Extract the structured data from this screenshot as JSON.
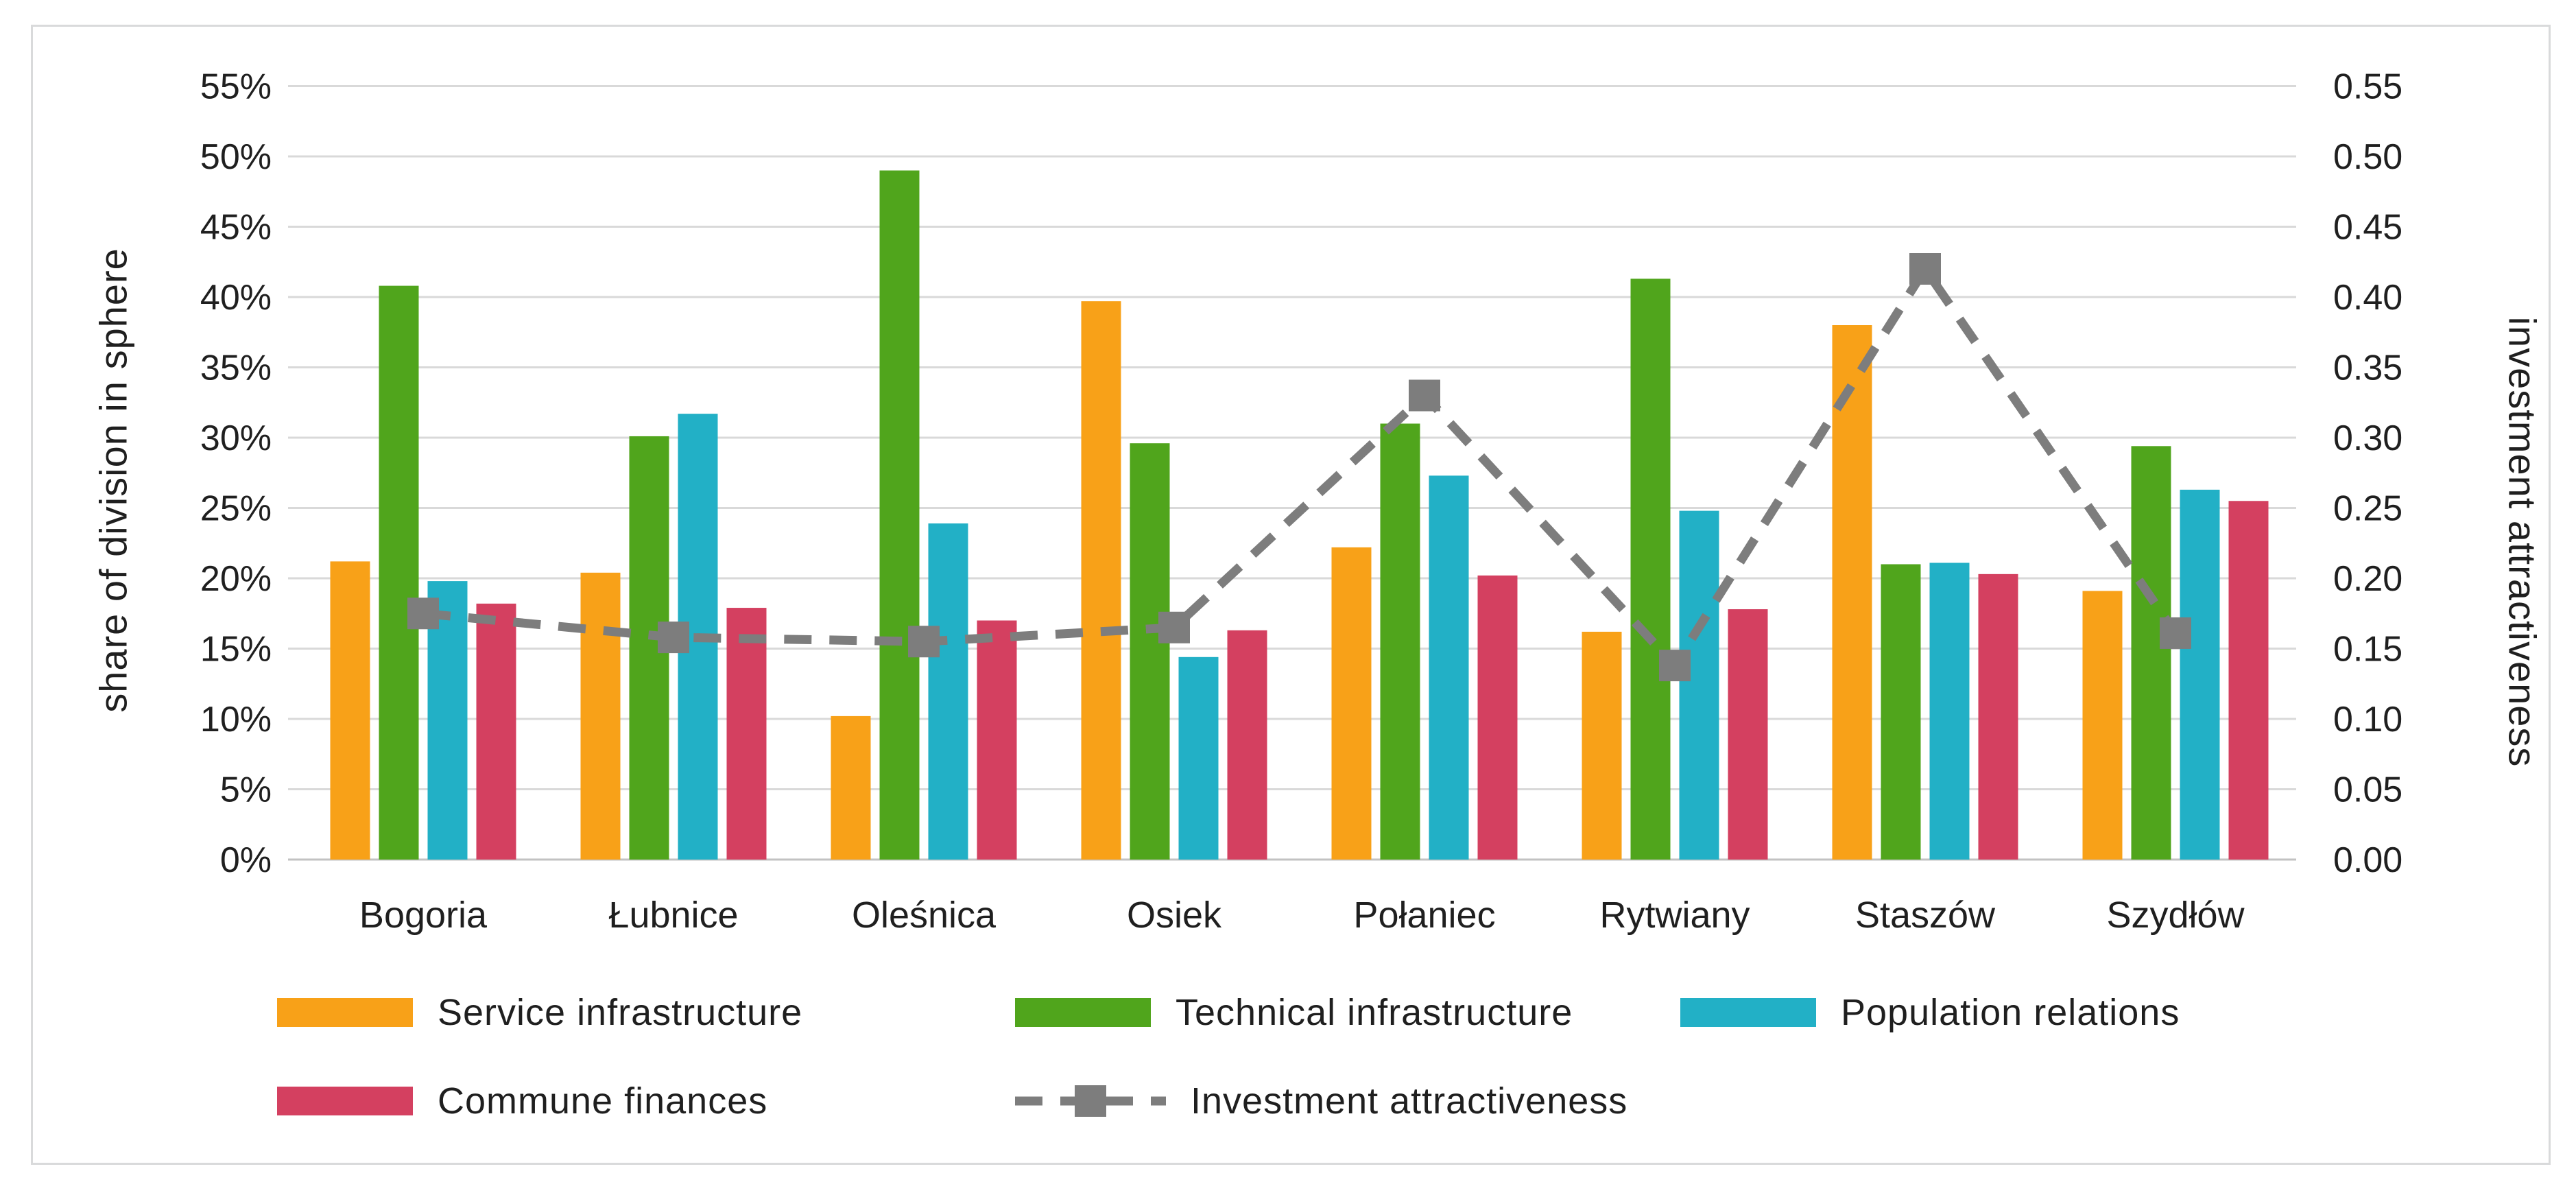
{
  "figure": {
    "background": "#ffffff",
    "border_color": "#d9dadb"
  },
  "chart_data": {
    "type": "combo-bar-line",
    "categories": [
      "Bogoria",
      "Łubnice",
      "Oleśnica",
      "Osiek",
      "Połaniec",
      "Rytwiany",
      "Staszów",
      "Szydłów"
    ],
    "series": [
      {
        "name": "Service infrastructure",
        "color": "#F8A118",
        "unit": "%",
        "values": [
          21.2,
          20.4,
          10.2,
          39.7,
          22.2,
          16.2,
          38.0,
          19.1
        ]
      },
      {
        "name": "Technical infrastructure",
        "color": "#50A51C",
        "unit": "%",
        "values": [
          40.8,
          30.1,
          49.0,
          29.6,
          31.0,
          41.3,
          21.0,
          29.4
        ]
      },
      {
        "name": "Population relations",
        "color": "#22B0C6",
        "unit": "%",
        "values": [
          19.8,
          31.7,
          23.9,
          14.4,
          27.3,
          24.8,
          21.1,
          26.3
        ]
      },
      {
        "name": "Commune finances",
        "color": "#D44060",
        "unit": "%",
        "values": [
          18.2,
          17.9,
          17.0,
          16.3,
          20.2,
          17.8,
          20.3,
          25.5
        ]
      }
    ],
    "line": {
      "name": "Investment attractiveness",
      "color": "#7D7D7D",
      "style": "dashed-with-square-markers",
      "values": [
        0.175,
        0.158,
        0.155,
        0.165,
        0.33,
        0.138,
        0.42,
        0.161
      ]
    },
    "left_axis": {
      "title": "share of division in sphere",
      "min": 0,
      "max": 55,
      "step": 5,
      "ticks": [
        "55%",
        "50%",
        "45%",
        "40%",
        "35%",
        "30%",
        "25%",
        "20%",
        "15%",
        "10%",
        "5%",
        "0%"
      ]
    },
    "right_axis": {
      "title": "investment attractiveness",
      "min": 0.0,
      "max": 0.55,
      "step": 0.05,
      "ticks": [
        "0.55",
        "0.50",
        "0.45",
        "0.40",
        "0.35",
        "0.30",
        "0.25",
        "0.20",
        "0.15",
        "0.10",
        "0.05",
        "0.00"
      ]
    },
    "grid": "horizontal",
    "gridline_color": "#d9d9d9",
    "axisline_color": "#c2c2c2",
    "text_color": "#1f1f1f",
    "legend_position": "bottom"
  }
}
